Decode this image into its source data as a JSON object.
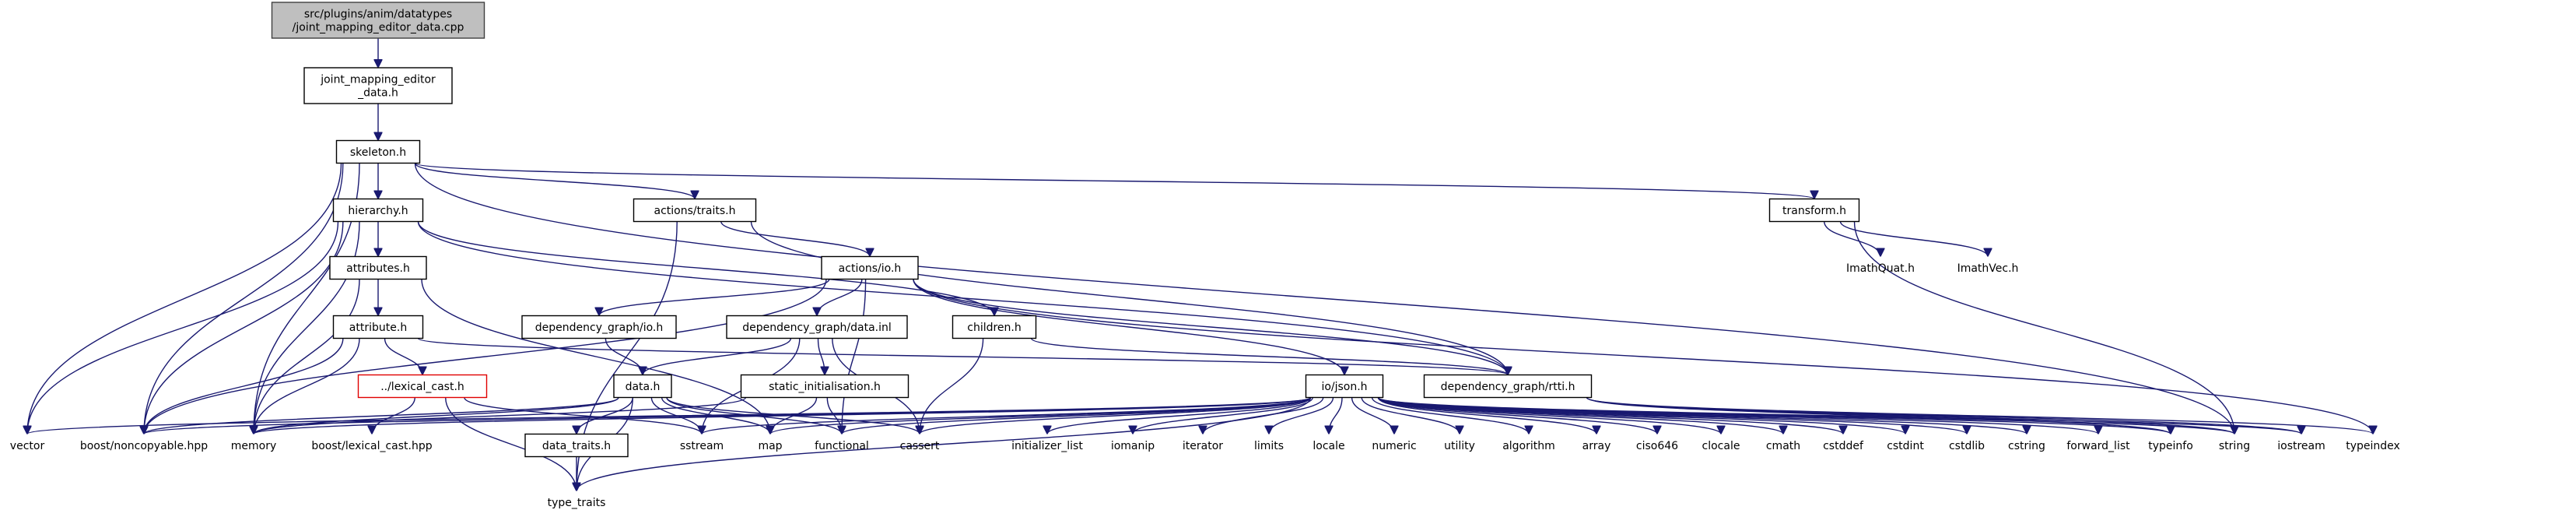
{
  "diagram": {
    "nodes": [
      {
        "id": "root",
        "lines": [
          "src/plugins/anim/datatypes",
          "/joint_mapping_editor_data.cpp"
        ],
        "kind": "root"
      },
      {
        "id": "jmed",
        "lines": [
          "joint_mapping_editor",
          "_data.h"
        ],
        "kind": "file"
      },
      {
        "id": "skeleton",
        "lines": [
          "skeleton.h"
        ],
        "kind": "file"
      },
      {
        "id": "hierarchy",
        "lines": [
          "hierarchy.h"
        ],
        "kind": "file"
      },
      {
        "id": "atraits",
        "lines": [
          "actions/traits.h"
        ],
        "kind": "file"
      },
      {
        "id": "transform",
        "lines": [
          "transform.h"
        ],
        "kind": "file"
      },
      {
        "id": "imathquat",
        "lines": [
          "ImathQuat.h"
        ],
        "kind": "ext"
      },
      {
        "id": "imathvec",
        "lines": [
          "ImathVec.h"
        ],
        "kind": "ext"
      },
      {
        "id": "attributes",
        "lines": [
          "attributes.h"
        ],
        "kind": "file"
      },
      {
        "id": "actionsio",
        "lines": [
          "actions/io.h"
        ],
        "kind": "file"
      },
      {
        "id": "attribute",
        "lines": [
          "attribute.h"
        ],
        "kind": "file"
      },
      {
        "id": "depio",
        "lines": [
          "dependency_graph/io.h"
        ],
        "kind": "file"
      },
      {
        "id": "depinl",
        "lines": [
          "dependency_graph/data.inl"
        ],
        "kind": "file"
      },
      {
        "id": "children",
        "lines": [
          "children.h"
        ],
        "kind": "file"
      },
      {
        "id": "lexical",
        "lines": [
          "../lexical_cast.h"
        ],
        "kind": "missing"
      },
      {
        "id": "datah",
        "lines": [
          "data.h"
        ],
        "kind": "file"
      },
      {
        "id": "staticinit",
        "lines": [
          "static_initialisation.h"
        ],
        "kind": "file"
      },
      {
        "id": "json",
        "lines": [
          "io/json.h"
        ],
        "kind": "file"
      },
      {
        "id": "rtti",
        "lines": [
          "dependency_graph/rtti.h"
        ],
        "kind": "file"
      },
      {
        "id": "datatraits",
        "lines": [
          "data_traits.h"
        ],
        "kind": "file"
      },
      {
        "id": "vector",
        "lines": [
          "vector"
        ],
        "kind": "ext"
      },
      {
        "id": "noncopy",
        "lines": [
          "boost/noncopyable.hpp"
        ],
        "kind": "ext"
      },
      {
        "id": "memory",
        "lines": [
          "memory"
        ],
        "kind": "ext"
      },
      {
        "id": "lexhpp",
        "lines": [
          "boost/lexical_cast.hpp"
        ],
        "kind": "ext"
      },
      {
        "id": "sstream",
        "lines": [
          "sstream"
        ],
        "kind": "ext"
      },
      {
        "id": "map",
        "lines": [
          "map"
        ],
        "kind": "ext"
      },
      {
        "id": "functional",
        "lines": [
          "functional"
        ],
        "kind": "ext"
      },
      {
        "id": "cassert",
        "lines": [
          "cassert"
        ],
        "kind": "ext"
      },
      {
        "id": "initlist",
        "lines": [
          "initializer_list"
        ],
        "kind": "ext"
      },
      {
        "id": "iomanip",
        "lines": [
          "iomanip"
        ],
        "kind": "ext"
      },
      {
        "id": "iterator",
        "lines": [
          "iterator"
        ],
        "kind": "ext"
      },
      {
        "id": "limits",
        "lines": [
          "limits"
        ],
        "kind": "ext"
      },
      {
        "id": "locale",
        "lines": [
          "locale"
        ],
        "kind": "ext"
      },
      {
        "id": "numeric",
        "lines": [
          "numeric"
        ],
        "kind": "ext"
      },
      {
        "id": "utility",
        "lines": [
          "utility"
        ],
        "kind": "ext"
      },
      {
        "id": "algorithm",
        "lines": [
          "algorithm"
        ],
        "kind": "ext"
      },
      {
        "id": "array",
        "lines": [
          "array"
        ],
        "kind": "ext"
      },
      {
        "id": "ciso646",
        "lines": [
          "ciso646"
        ],
        "kind": "ext"
      },
      {
        "id": "clocale",
        "lines": [
          "clocale"
        ],
        "kind": "ext"
      },
      {
        "id": "cmath",
        "lines": [
          "cmath"
        ],
        "kind": "ext"
      },
      {
        "id": "cstddef",
        "lines": [
          "cstddef"
        ],
        "kind": "ext"
      },
      {
        "id": "cstdint",
        "lines": [
          "cstdint"
        ],
        "kind": "ext"
      },
      {
        "id": "cstdlib",
        "lines": [
          "cstdlib"
        ],
        "kind": "ext"
      },
      {
        "id": "cstring",
        "lines": [
          "cstring"
        ],
        "kind": "ext"
      },
      {
        "id": "fwdlist",
        "lines": [
          "forward_list"
        ],
        "kind": "ext"
      },
      {
        "id": "typeinfo",
        "lines": [
          "typeinfo"
        ],
        "kind": "ext"
      },
      {
        "id": "string",
        "lines": [
          "string"
        ],
        "kind": "ext"
      },
      {
        "id": "iostream",
        "lines": [
          "iostream"
        ],
        "kind": "ext"
      },
      {
        "id": "typeindex",
        "lines": [
          "typeindex"
        ],
        "kind": "ext"
      },
      {
        "id": "typetraits",
        "lines": [
          "type_traits"
        ],
        "kind": "ext"
      }
    ],
    "edges": [
      [
        "root",
        "jmed"
      ],
      [
        "jmed",
        "skeleton"
      ],
      [
        "skeleton",
        "hierarchy"
      ],
      [
        "skeleton",
        "atraits"
      ],
      [
        "skeleton",
        "transform"
      ],
      [
        "skeleton",
        "vector"
      ],
      [
        "skeleton",
        "noncopy"
      ],
      [
        "skeleton",
        "memory"
      ],
      [
        "skeleton",
        "string"
      ],
      [
        "hierarchy",
        "attributes"
      ],
      [
        "hierarchy",
        "children"
      ],
      [
        "hierarchy",
        "rtti"
      ],
      [
        "hierarchy",
        "vector"
      ],
      [
        "hierarchy",
        "noncopy"
      ],
      [
        "hierarchy",
        "memory"
      ],
      [
        "atraits",
        "actionsio"
      ],
      [
        "atraits",
        "rtti"
      ],
      [
        "atraits",
        "typetraits"
      ],
      [
        "transform",
        "imathquat"
      ],
      [
        "transform",
        "imathvec"
      ],
      [
        "transform",
        "string"
      ],
      [
        "attributes",
        "attribute"
      ],
      [
        "attributes",
        "memory"
      ],
      [
        "attributes",
        "map"
      ],
      [
        "attribute",
        "lexical"
      ],
      [
        "attribute",
        "rtti"
      ],
      [
        "attribute",
        "noncopy"
      ],
      [
        "attribute",
        "memory"
      ],
      [
        "actionsio",
        "depio"
      ],
      [
        "actionsio",
        "depinl"
      ],
      [
        "actionsio",
        "json"
      ],
      [
        "actionsio",
        "rtti"
      ],
      [
        "actionsio",
        "noncopy"
      ],
      [
        "actionsio",
        "functional"
      ],
      [
        "actionsio",
        "typeindex"
      ],
      [
        "depio",
        "datah"
      ],
      [
        "depinl",
        "datah"
      ],
      [
        "depinl",
        "staticinit"
      ],
      [
        "depinl",
        "sstream"
      ],
      [
        "depinl",
        "cassert"
      ],
      [
        "children",
        "cassert"
      ],
      [
        "children",
        "rtti"
      ],
      [
        "lexical",
        "lexhpp"
      ],
      [
        "lexical",
        "typetraits"
      ],
      [
        "lexical",
        "sstream"
      ],
      [
        "datah",
        "datatraits"
      ],
      [
        "datah",
        "typetraits"
      ],
      [
        "datah",
        "memory"
      ],
      [
        "datah",
        "noncopy"
      ],
      [
        "datah",
        "map"
      ],
      [
        "datah",
        "sstream"
      ],
      [
        "datah",
        "functional"
      ],
      [
        "datah",
        "cassert"
      ],
      [
        "staticinit",
        "map"
      ],
      [
        "staticinit",
        "functional"
      ],
      [
        "staticinit",
        "memory"
      ],
      [
        "json",
        "vector"
      ],
      [
        "json",
        "noncopy"
      ],
      [
        "json",
        "memory"
      ],
      [
        "json",
        "sstream"
      ],
      [
        "json",
        "map"
      ],
      [
        "json",
        "functional"
      ],
      [
        "json",
        "cassert"
      ],
      [
        "json",
        "initlist"
      ],
      [
        "json",
        "iomanip"
      ],
      [
        "json",
        "iterator"
      ],
      [
        "json",
        "limits"
      ],
      [
        "json",
        "locale"
      ],
      [
        "json",
        "numeric"
      ],
      [
        "json",
        "utility"
      ],
      [
        "json",
        "algorithm"
      ],
      [
        "json",
        "array"
      ],
      [
        "json",
        "ciso646"
      ],
      [
        "json",
        "clocale"
      ],
      [
        "json",
        "cmath"
      ],
      [
        "json",
        "cstddef"
      ],
      [
        "json",
        "cstdint"
      ],
      [
        "json",
        "cstdlib"
      ],
      [
        "json",
        "cstring"
      ],
      [
        "json",
        "fwdlist"
      ],
      [
        "json",
        "typeinfo"
      ],
      [
        "json",
        "string"
      ],
      [
        "json",
        "iostream"
      ],
      [
        "json",
        "typetraits"
      ],
      [
        "rtti",
        "string"
      ],
      [
        "rtti",
        "iostream"
      ],
      [
        "rtti",
        "typeinfo"
      ],
      [
        "rtti",
        "typeindex"
      ],
      [
        "datatraits",
        "typetraits"
      ]
    ]
  }
}
